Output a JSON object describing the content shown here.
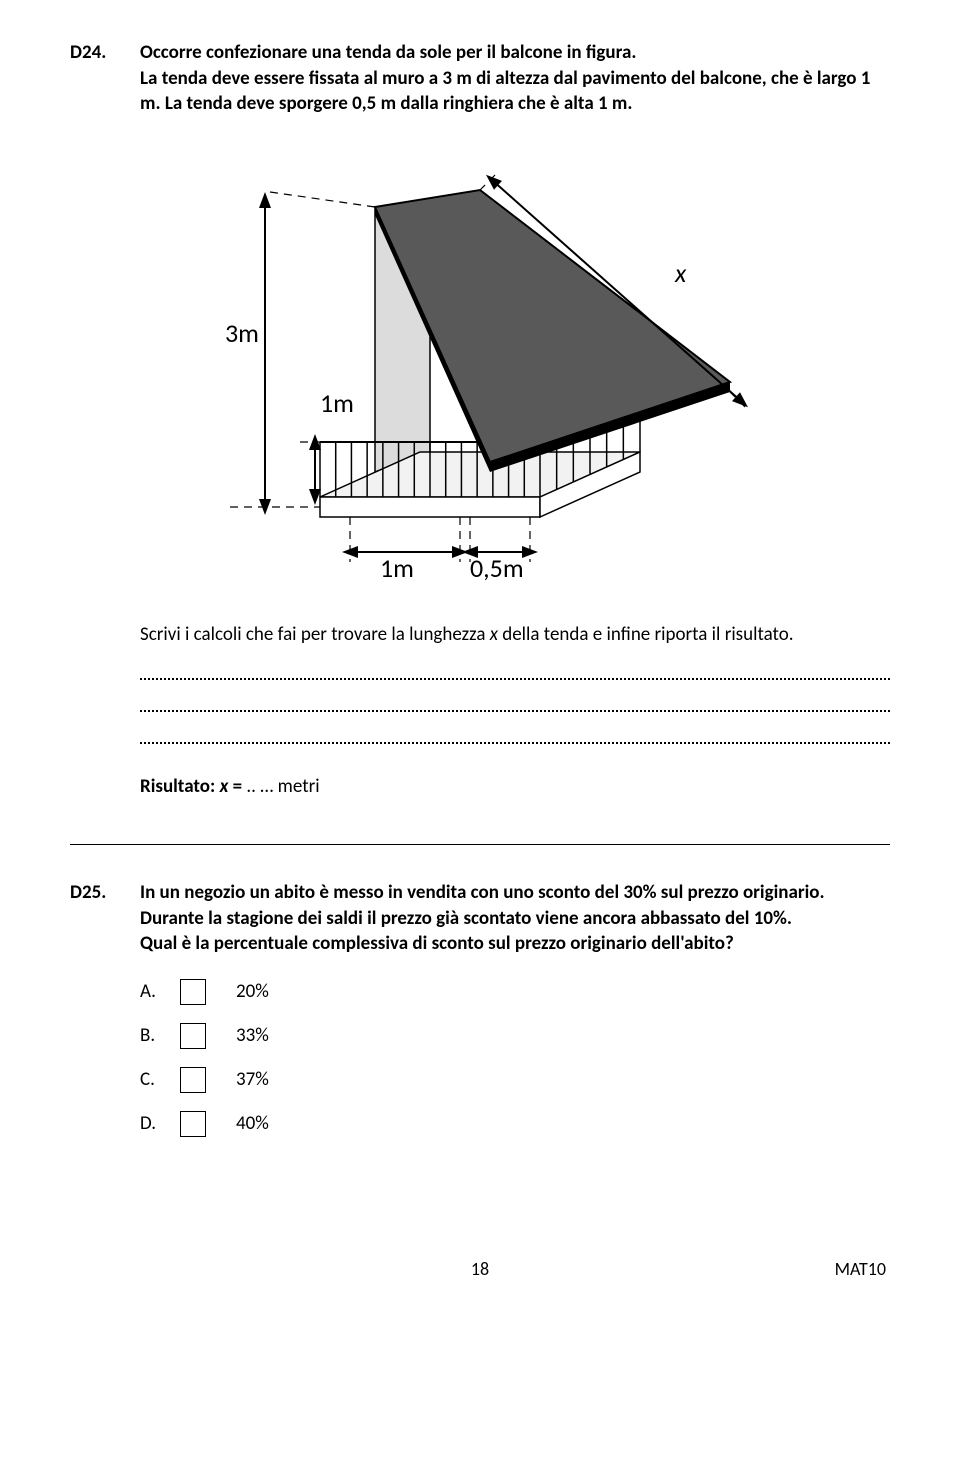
{
  "q24": {
    "number": "D24.",
    "text_line1": "Occorre confezionare una tenda da sole per il balcone in figura.",
    "text_line2": "La tenda deve essere fissata al muro a 3 m di altezza dal pavimento del balcone, che è largo 1 m. La tenda deve sporgere 0,5 m dalla ringhiera che è alta 1 m.",
    "instruction_prefix": "Scrivi i calcoli che fai per trovare la lunghezza ",
    "instruction_var": "x",
    "instruction_suffix": " della tenda e infine riporta il risultato.",
    "result_label": "Risultato: ",
    "result_var": "x",
    "result_eq": " = ",
    "result_dots": ".. …",
    "result_unit": " metri",
    "figure": {
      "labels": {
        "h3": "3m",
        "h1": "1m",
        "w1": "1m",
        "w05": "0,5m",
        "x": "x"
      },
      "colors": {
        "awning_top": "#595959",
        "awning_edge": "#000000",
        "wall_fill": "#dcdcdc",
        "balcony_fill": "#f2f2f2",
        "rail_stroke": "#000000",
        "dash_stroke": "#000000",
        "text": "#000000",
        "bg": "#ffffff"
      },
      "stroke_width": 2,
      "dash": "8 6",
      "font_size": 26
    }
  },
  "q25": {
    "number": "D25.",
    "text_line1": "In un negozio un abito è messo in vendita con uno sconto del 30% sul prezzo originario. Durante la stagione dei saldi il prezzo già scontato viene ancora abbassato del 10%.",
    "text_line2": "Qual è la percentuale complessiva di sconto sul prezzo originario dell'abito?",
    "options": [
      {
        "letter": "A.",
        "value": "20%"
      },
      {
        "letter": "B.",
        "value": "33%"
      },
      {
        "letter": "C.",
        "value": "37%"
      },
      {
        "letter": "D.",
        "value": "40%"
      }
    ]
  },
  "footer": {
    "page": "18",
    "code": "MAT10"
  }
}
